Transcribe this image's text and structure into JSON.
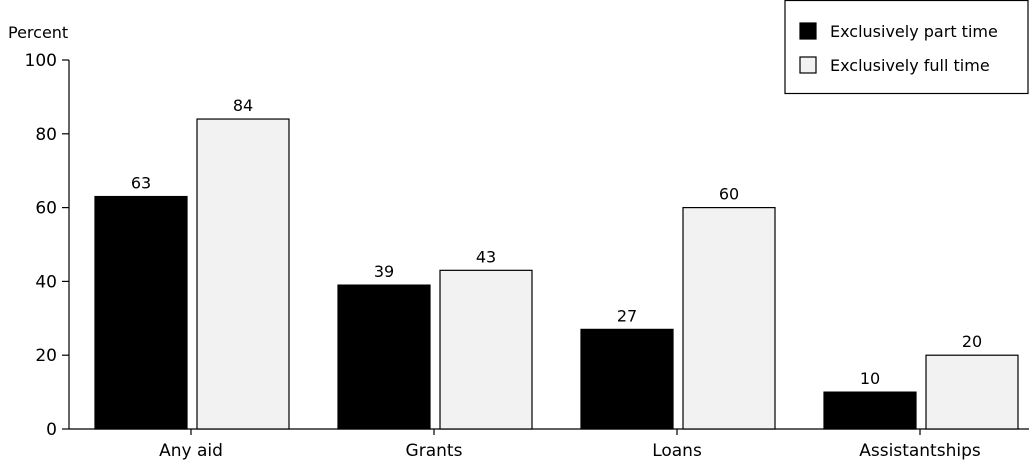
{
  "chart_data": {
    "type": "bar",
    "title": "",
    "xlabel": "",
    "ylabel": "Percent",
    "ylim": [
      0,
      100
    ],
    "yticks": [
      0,
      20,
      40,
      60,
      80,
      100
    ],
    "grid": false,
    "legend_position": "top-right",
    "categories": [
      "Any aid",
      "Grants",
      "Loans",
      "Assistantships"
    ],
    "series": [
      {
        "name": "Exclusively part time",
        "values": [
          63,
          39,
          27,
          10
        ],
        "color": "#000000"
      },
      {
        "name": "Exclusively full time",
        "values": [
          84,
          43,
          60,
          20
        ],
        "color": "#f2f2f2"
      }
    ]
  }
}
